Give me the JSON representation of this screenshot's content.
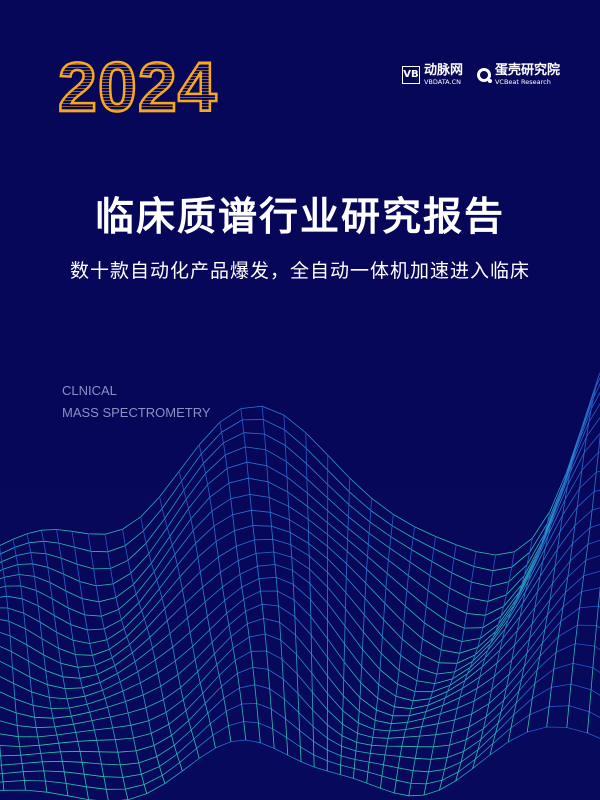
{
  "cover": {
    "year": "2024",
    "logos": [
      {
        "mark": "VB",
        "name_cn": "动脉网",
        "name_en": "VBDATA.CN"
      },
      {
        "name_cn": "蛋壳研究院",
        "name_en": "VCBeat Research"
      }
    ],
    "title": "临床质谱行业研究报告",
    "subtitle": "数十款自动化产品爆发，全自动一体机加速进入临床",
    "english_title": [
      "CLNICAL",
      "MASS SPECTROMETRY"
    ],
    "colors": {
      "background": "#07075a",
      "year": "#f7a81b",
      "mesh_top": "#2b5bd7",
      "mesh_bottom": "#2fe0b0"
    }
  }
}
